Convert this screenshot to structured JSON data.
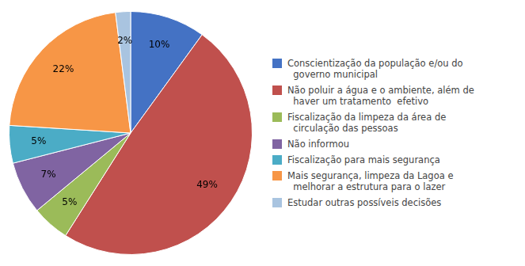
{
  "chart_data": {
    "type": "pie",
    "categories": [
      "Conscientização da população e/ou do\n  governo municipal",
      "Não poluir a água e o ambiente, além de\n  haver um tratamento  efetivo",
      "Fiscalização da limpeza da área de\n  circulação das pessoas",
      "Não informou",
      "Fiscalização para mais segurança",
      "Mais segurança, limpeza da Lagoa e\n  melhorar a estrutura para o lazer",
      "Estudar outras possíveis decisões"
    ],
    "values": [
      10,
      49,
      5,
      7,
      5,
      22,
      2
    ],
    "value_labels": [
      "10%",
      "49%",
      "5%",
      "7%",
      "5%",
      "22%",
      "2%"
    ],
    "colors": [
      "#4472C4",
      "#C0504D",
      "#9BBB59",
      "#8064A2",
      "#4BACC6",
      "#F79646",
      "#A9C4E0"
    ],
    "data_labels": true,
    "legend": "right"
  }
}
